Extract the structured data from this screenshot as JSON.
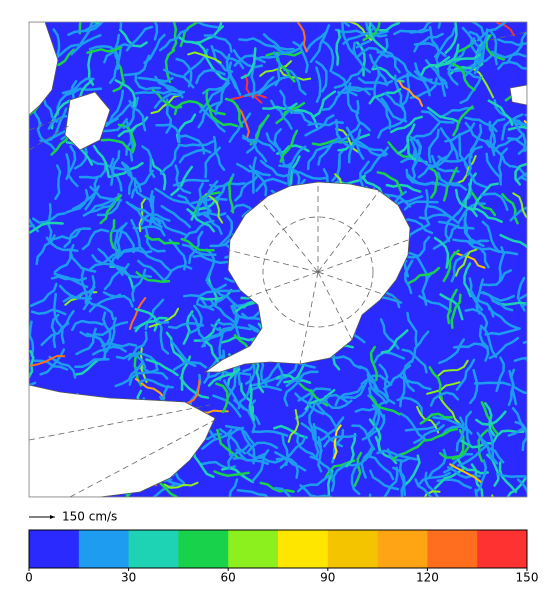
{
  "legend": {
    "reference_arrow_label": "150 cm/s",
    "colorbar": {
      "lim": [
        0,
        150
      ],
      "ticks": [
        0,
        30,
        60,
        90,
        120,
        150
      ],
      "colors": [
        "#2a2aff",
        "#1e9cf0",
        "#1ed2b4",
        "#19d24b",
        "#8cf01e",
        "#ffe600",
        "#f5c400",
        "#ffa514",
        "#ff6e1e",
        "#ff3232"
      ]
    }
  }
}
